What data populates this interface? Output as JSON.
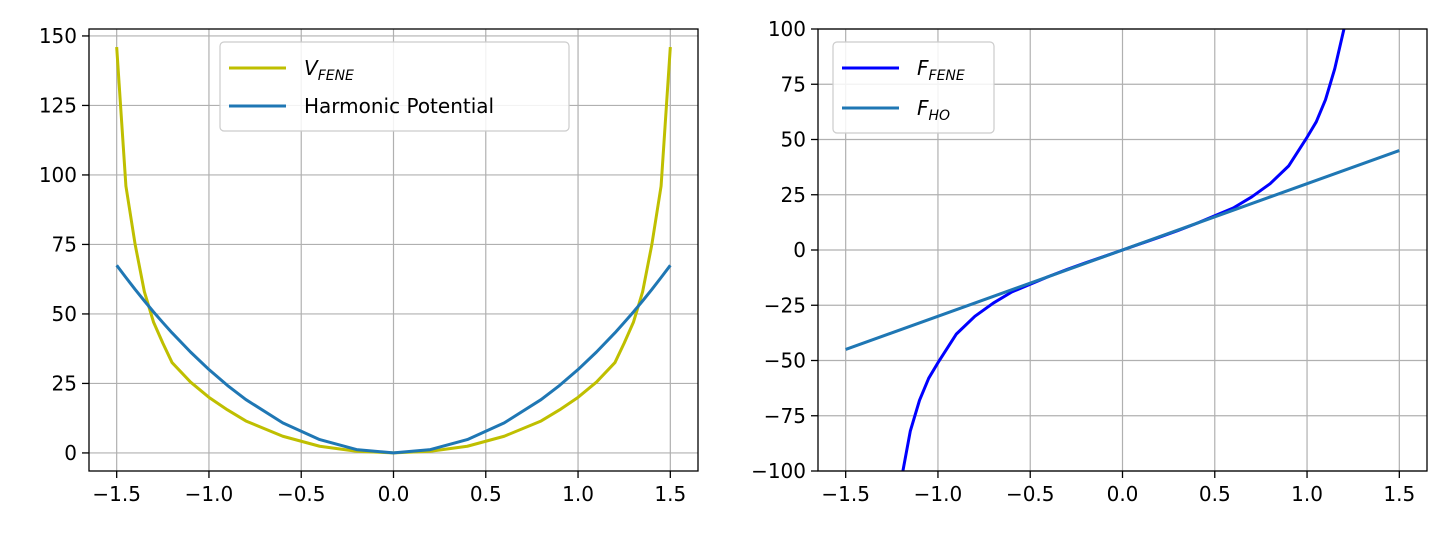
{
  "chart_data": [
    {
      "type": "line",
      "title": "",
      "xlabel": "",
      "ylabel": "",
      "xlim": [
        -1.65,
        1.65
      ],
      "ylim": [
        -6.5,
        152.5
      ],
      "xticks": [
        -1.5,
        -1.0,
        -0.5,
        0.0,
        0.5,
        1.0,
        1.5
      ],
      "xtick_labels": [
        "−1.5",
        "−1.0",
        "−0.5",
        "0.0",
        "0.5",
        "1.0",
        "1.5"
      ],
      "yticks": [
        0,
        25,
        50,
        75,
        100,
        125,
        150
      ],
      "ytick_labels": [
        "0",
        "25",
        "50",
        "75",
        "100",
        "125",
        "150"
      ],
      "grid": true,
      "legend_position": "upper-center",
      "x": [
        -1.5,
        -1.45,
        -1.4,
        -1.35,
        -1.3,
        -1.25,
        -1.2,
        -1.1,
        -1.0,
        -0.9,
        -0.8,
        -0.6,
        -0.4,
        -0.2,
        0.0,
        0.2,
        0.4,
        0.6,
        0.8,
        0.9,
        1.0,
        1.1,
        1.2,
        1.25,
        1.3,
        1.35,
        1.4,
        1.45,
        1.5
      ],
      "series": [
        {
          "legend": {
            "main": "V",
            "sub": "FENE"
          },
          "color": "#bfbf00",
          "values": [
            146,
            96,
            75,
            58,
            47,
            39.5,
            32.5,
            25.5,
            20,
            15.5,
            11.5,
            6,
            2.4,
            0.6,
            0,
            0.6,
            2.4,
            6,
            11.5,
            15.5,
            20,
            25.5,
            32.5,
            39.5,
            47,
            58,
            75,
            96,
            146
          ]
        },
        {
          "legend": {
            "main": "Harmonic Potential",
            "sub": ""
          },
          "color": "#1f77b4",
          "values": [
            67.5,
            63.1,
            58.8,
            54.7,
            50.7,
            46.9,
            43.2,
            36.3,
            30,
            24.3,
            19.2,
            10.8,
            4.8,
            1.2,
            0,
            1.2,
            4.8,
            10.8,
            19.2,
            24.3,
            30,
            36.3,
            43.2,
            46.9,
            50.7,
            54.7,
            58.8,
            63.1,
            67.5
          ]
        }
      ]
    },
    {
      "type": "line",
      "title": "",
      "xlabel": "",
      "ylabel": "",
      "xlim": [
        -1.65,
        1.65
      ],
      "ylim": [
        -100,
        100
      ],
      "xticks": [
        -1.5,
        -1.0,
        -0.5,
        0.0,
        0.5,
        1.0,
        1.5
      ],
      "xtick_labels": [
        "−1.5",
        "−1.0",
        "−0.5",
        "0.0",
        "0.5",
        "1.0",
        "1.5"
      ],
      "yticks": [
        -100,
        -75,
        -50,
        -25,
        0,
        25,
        50,
        75,
        100
      ],
      "ytick_labels": [
        "−100",
        "−75",
        "−50",
        "−25",
        "0",
        "25",
        "50",
        "75",
        "100"
      ],
      "grid": true,
      "legend_position": "upper-left",
      "series": [
        {
          "legend": {
            "main": "F",
            "sub": "FENE"
          },
          "color": "#0000ff",
          "x": [
            -1.19,
            -1.15,
            -1.1,
            -1.05,
            -1.0,
            -0.9,
            -0.8,
            -0.7,
            -0.6,
            -0.5,
            -0.4,
            -0.3,
            -0.2,
            -0.1,
            0.0,
            0.1,
            0.2,
            0.3,
            0.4,
            0.5,
            0.6,
            0.7,
            0.8,
            0.9,
            1.0,
            1.05,
            1.1,
            1.15,
            1.2
          ],
          "values": [
            -100,
            -82,
            -68,
            -58,
            -51,
            -38,
            -30,
            -24,
            -19,
            -15.5,
            -12,
            -8.8,
            -5.8,
            -2.9,
            0,
            2.9,
            5.8,
            8.8,
            12,
            15.5,
            19,
            24,
            30,
            38,
            51,
            58,
            68,
            82,
            100
          ]
        },
        {
          "legend": {
            "main": "F",
            "sub": "HO"
          },
          "color": "#1f77b4",
          "x": [
            -1.5,
            1.5
          ],
          "values": [
            -45,
            45
          ]
        }
      ]
    }
  ]
}
